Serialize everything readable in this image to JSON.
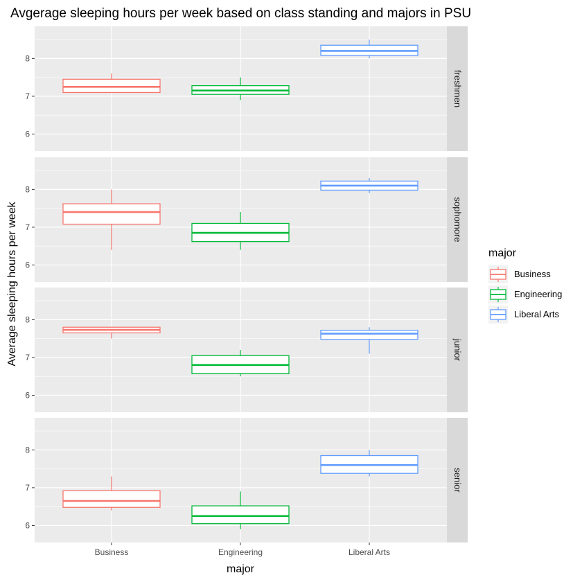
{
  "chart_data": {
    "type": "boxplot",
    "title": "Avgerage sleeping hours per week based on class standing and majors in PSU",
    "xlabel": "major",
    "ylabel": "Average sleeping hours per week",
    "categories": [
      "Business",
      "Engineering",
      "Liberal Arts"
    ],
    "y_ticks": [
      6,
      7,
      8
    ],
    "ylim": [
      5.55,
      8.85
    ],
    "grid": true,
    "facet_direction": "rows",
    "legend": {
      "title": "major",
      "position": "right",
      "entries": [
        "Business",
        "Engineering",
        "Liberal Arts"
      ]
    },
    "colors": {
      "Business": "#F8766D",
      "Engineering": "#00BA38",
      "Liberal Arts": "#619CFF",
      "panel_background": "#EBEBEB",
      "strip_background": "#D9D9D9",
      "grid": "#FFFFFF"
    },
    "panels": [
      {
        "label": "freshmen",
        "boxes": [
          {
            "major": "Business",
            "min": 7.1,
            "q1": 7.1,
            "median": 7.25,
            "q3": 7.45,
            "max": 7.6
          },
          {
            "major": "Engineering",
            "min": 6.9,
            "q1": 7.05,
            "median": 7.15,
            "q3": 7.28,
            "max": 7.5
          },
          {
            "major": "Liberal Arts",
            "min": 8.0,
            "q1": 8.08,
            "median": 8.2,
            "q3": 8.35,
            "max": 8.5
          }
        ]
      },
      {
        "label": "sophomore",
        "boxes": [
          {
            "major": "Business",
            "min": 6.4,
            "q1": 7.08,
            "median": 7.4,
            "q3": 7.62,
            "max": 8.0
          },
          {
            "major": "Engineering",
            "min": 6.4,
            "q1": 6.62,
            "median": 6.85,
            "q3": 7.1,
            "max": 7.4
          },
          {
            "major": "Liberal Arts",
            "min": 7.9,
            "q1": 7.98,
            "median": 8.1,
            "q3": 8.22,
            "max": 8.3
          }
        ]
      },
      {
        "label": "junior",
        "boxes": [
          {
            "major": "Business",
            "min": 7.5,
            "q1": 7.65,
            "median": 7.73,
            "q3": 7.8,
            "max": 7.8
          },
          {
            "major": "Engineering",
            "min": 6.5,
            "q1": 6.57,
            "median": 6.8,
            "q3": 7.05,
            "max": 7.2
          },
          {
            "major": "Liberal Arts",
            "min": 7.1,
            "q1": 7.48,
            "median": 7.63,
            "q3": 7.72,
            "max": 7.8
          }
        ]
      },
      {
        "label": "senior",
        "boxes": [
          {
            "major": "Business",
            "min": 6.4,
            "q1": 6.48,
            "median": 6.65,
            "q3": 6.92,
            "max": 7.3
          },
          {
            "major": "Engineering",
            "min": 5.9,
            "q1": 6.05,
            "median": 6.25,
            "q3": 6.52,
            "max": 6.9
          },
          {
            "major": "Liberal Arts",
            "min": 7.3,
            "q1": 7.38,
            "median": 7.6,
            "q3": 7.85,
            "max": 8.0
          }
        ]
      }
    ]
  }
}
